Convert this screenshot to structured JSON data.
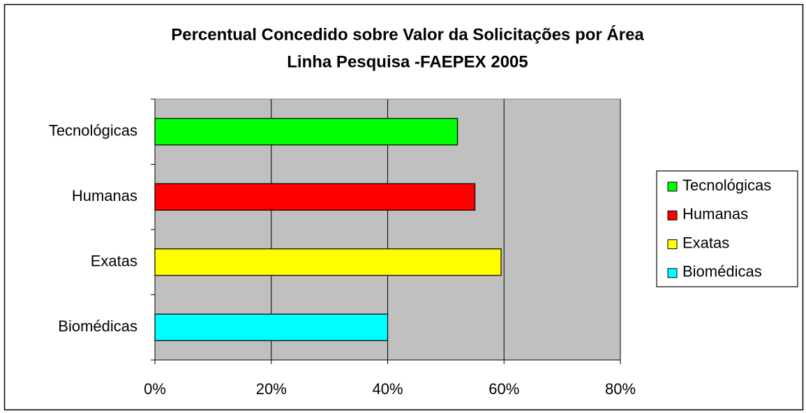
{
  "chart_data": {
    "type": "bar",
    "orientation": "horizontal",
    "title": [
      "Percentual Concedido sobre Valor da Solicitações por Área",
      "Linha Pesquisa -FAEPEX 2005"
    ],
    "categories": [
      "Tecnológicas",
      "Humanas",
      "Exatas",
      "Biomédicas"
    ],
    "values": [
      52,
      55,
      59.5,
      40
    ],
    "colors": [
      "#00ff00",
      "#ff0000",
      "#ffff00",
      "#00ffff"
    ],
    "xlim": [
      0,
      80
    ],
    "xticks": [
      {
        "value": 0,
        "label": "0%"
      },
      {
        "value": 20,
        "label": "20%"
      },
      {
        "value": 40,
        "label": "40%"
      },
      {
        "value": 60,
        "label": "60%"
      },
      {
        "value": 80,
        "label": "80%"
      }
    ],
    "grid": true,
    "legend": "right"
  }
}
